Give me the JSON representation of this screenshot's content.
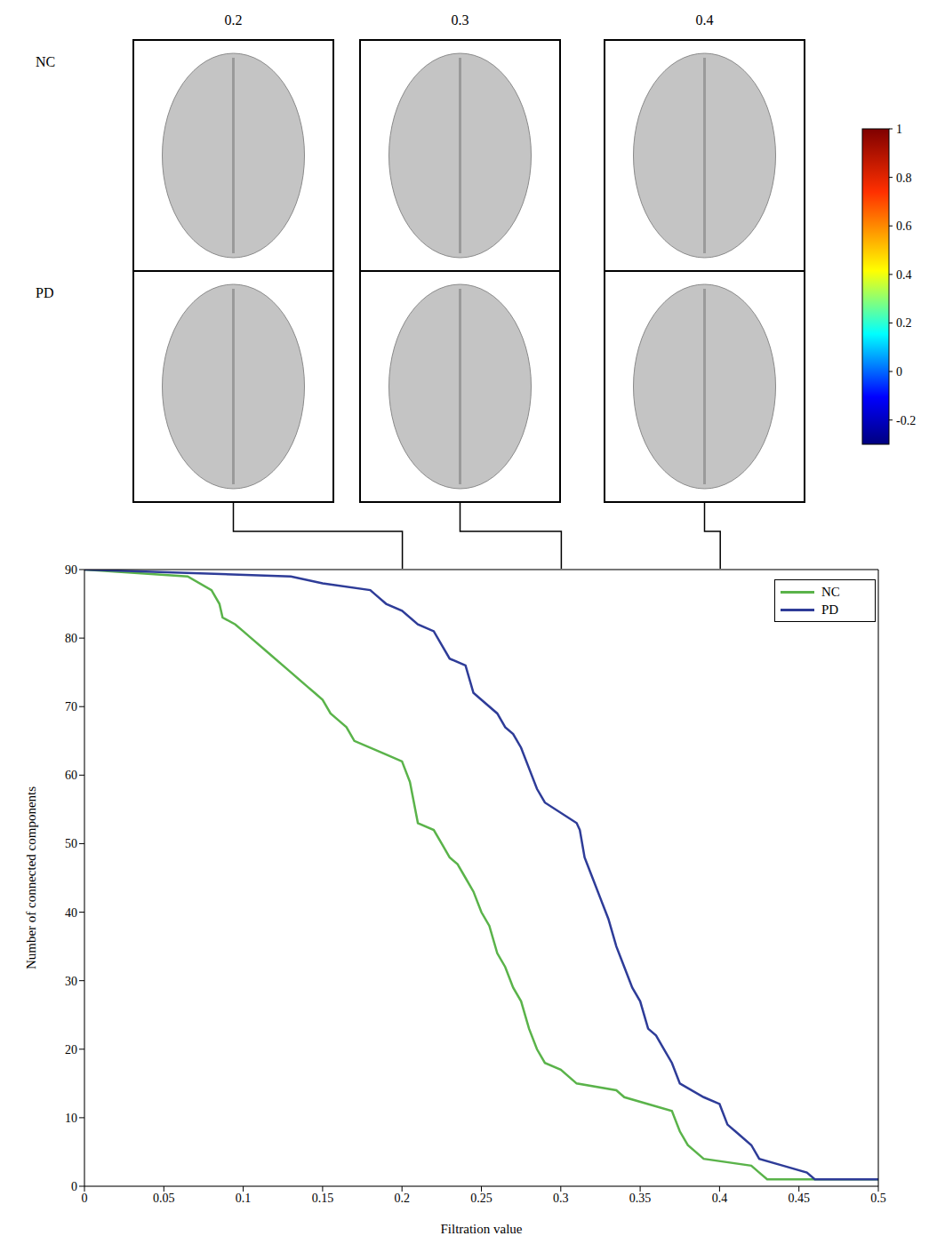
{
  "chart_data": {
    "type": "line",
    "xlabel": "Filtration value",
    "ylabel": "Number of connected components",
    "xlim": [
      0,
      0.5
    ],
    "xticks": [
      0,
      0.05,
      0.1,
      0.15,
      0.2,
      0.25,
      0.3,
      0.35,
      0.4,
      0.45,
      0.5
    ],
    "ylim": [
      0,
      90
    ],
    "yticks": [
      0,
      10,
      20,
      30,
      40,
      50,
      60,
      70,
      80,
      90
    ],
    "grid": true,
    "legend": "upper right",
    "series": [
      {
        "name": "NC",
        "color": "#5ab34a",
        "x": [
          0,
          0.065,
          0.08,
          0.085,
          0.087,
          0.095,
          0.1,
          0.105,
          0.115,
          0.13,
          0.14,
          0.145,
          0.15,
          0.155,
          0.16,
          0.165,
          0.17,
          0.19,
          0.2,
          0.205,
          0.21,
          0.22,
          0.225,
          0.23,
          0.235,
          0.24,
          0.245,
          0.25,
          0.255,
          0.26,
          0.265,
          0.27,
          0.275,
          0.28,
          0.285,
          0.29,
          0.3,
          0.31,
          0.335,
          0.34,
          0.37,
          0.375,
          0.38,
          0.39,
          0.42,
          0.425,
          0.43,
          0.5
        ],
        "values": [
          90,
          89,
          87,
          85,
          83,
          82,
          81,
          80,
          78,
          75,
          73,
          72,
          71,
          69,
          68,
          67,
          65,
          63,
          62,
          59,
          53,
          52,
          50,
          48,
          47,
          45,
          43,
          40,
          38,
          34,
          32,
          29,
          27,
          23,
          20,
          18,
          17,
          15,
          14,
          13,
          11,
          8,
          6,
          4,
          3,
          2,
          1,
          1
        ]
      },
      {
        "name": "PD",
        "color": "#2e3c98",
        "x": [
          0,
          0.13,
          0.15,
          0.18,
          0.185,
          0.19,
          0.2,
          0.21,
          0.22,
          0.225,
          0.23,
          0.24,
          0.245,
          0.25,
          0.26,
          0.265,
          0.27,
          0.275,
          0.28,
          0.285,
          0.29,
          0.31,
          0.312,
          0.315,
          0.32,
          0.325,
          0.33,
          0.335,
          0.34,
          0.345,
          0.35,
          0.355,
          0.36,
          0.365,
          0.37,
          0.375,
          0.39,
          0.4,
          0.405,
          0.41,
          0.42,
          0.425,
          0.44,
          0.455,
          0.46,
          0.5
        ],
        "values": [
          90,
          89,
          88,
          87,
          86,
          85,
          84,
          82,
          81,
          79,
          77,
          76,
          72,
          71,
          69,
          67,
          66,
          64,
          61,
          58,
          56,
          53,
          52,
          48,
          45,
          42,
          39,
          35,
          32,
          29,
          27,
          23,
          22,
          20,
          18,
          15,
          13,
          12,
          9,
          8,
          6,
          4,
          3,
          2,
          1,
          1
        ]
      }
    ]
  },
  "panels": {
    "columns": [
      0.2,
      0.3,
      0.4
    ],
    "rows": [
      "NC",
      "PD"
    ],
    "colorbar": {
      "range": [
        -0.3,
        1
      ],
      "ticks": [
        1,
        0.8,
        0.6,
        0.4,
        0.2,
        0,
        -0.2
      ]
    }
  }
}
